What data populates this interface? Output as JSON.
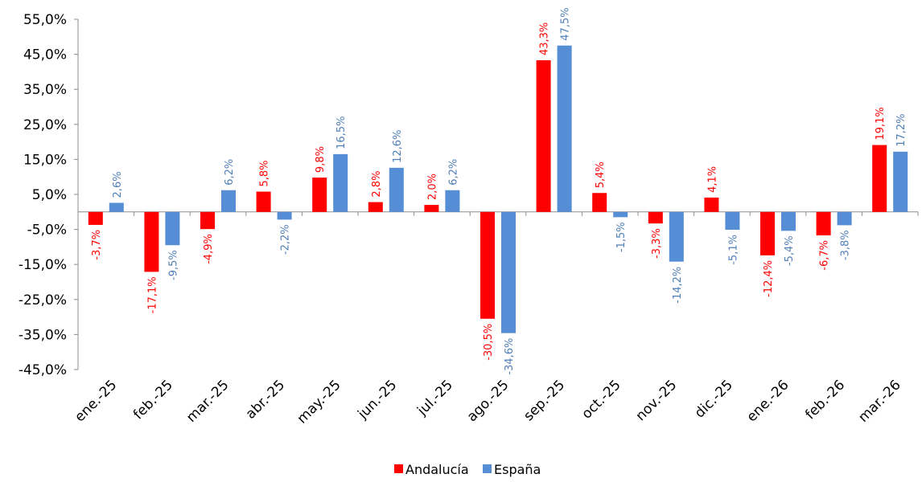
{
  "chart_data": {
    "type": "bar",
    "title": "",
    "xlabel": "",
    "ylabel": "",
    "ylim": [
      -45,
      55
    ],
    "yticks": [
      "55,0%",
      "45,0%",
      "35,0%",
      "25,0%",
      "15,0%",
      "5,0%",
      "-5,0%",
      "-15,0%",
      "-25,0%",
      "-35,0%",
      "-45,0%"
    ],
    "categories": [
      "ene.-25",
      "feb.-25",
      "mar.-25",
      "abr.-25",
      "may.-25",
      "jun.-25",
      "jul.-25",
      "ago.-25",
      "sep.-25",
      "oct.-25",
      "nov.-25",
      "dic.-25",
      "ene.-26",
      "feb.-26",
      "mar.-26"
    ],
    "series": [
      {
        "name": "Andalucía",
        "color": "#ff0000",
        "values": [
          -3.7,
          -17.1,
          -4.9,
          5.8,
          9.8,
          2.8,
          2.0,
          -30.5,
          43.3,
          5.4,
          -3.3,
          4.1,
          -12.4,
          -6.7,
          19.1
        ],
        "labels": [
          "-3,7%",
          "-17,1%",
          "-4,9%",
          "5,8%",
          "9,8%",
          "2,8%",
          "2,0%",
          "-30,5%",
          "43,3%",
          "5,4%",
          "-3,3%",
          "4,1%",
          "-12,4%",
          "-6,7%",
          "19,1%"
        ]
      },
      {
        "name": "España",
        "color": "#558ed5",
        "values": [
          2.6,
          -9.5,
          6.2,
          -2.2,
          16.5,
          12.6,
          6.2,
          -34.6,
          47.5,
          -1.5,
          -14.2,
          -5.1,
          -5.4,
          -3.8,
          17.2
        ],
        "labels": [
          "2,6%",
          "-9,5%",
          "6,2%",
          "-2,2%",
          "16,5%",
          "12,6%",
          "6,2%",
          "-34,6%",
          "47,5%",
          "-1,5%",
          "-14,2%",
          "-5,1%",
          "-5,4%",
          "-3,8%",
          "17,2%"
        ]
      }
    ],
    "label_colors": {
      "Andalucía": "#ff0000",
      "España": "#4f7fb8"
    },
    "legend_position": "bottom",
    "grid": false
  }
}
